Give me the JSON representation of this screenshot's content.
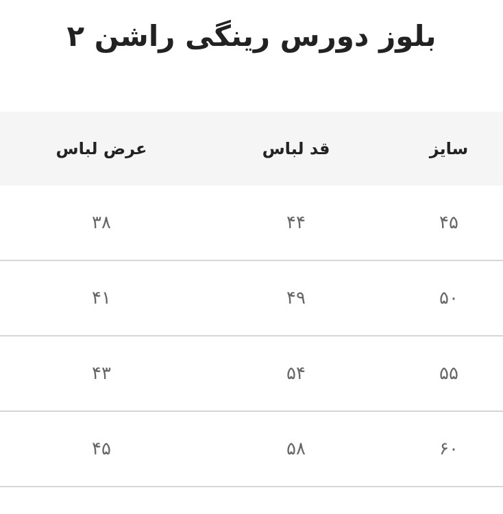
{
  "title": "بلوز دورس رینگی راشن ۲",
  "table": {
    "headers": [
      "سایز",
      "قد لباس",
      "عرض لباس"
    ],
    "rows": [
      [
        "۴۵",
        "۴۴",
        "۳۸"
      ],
      [
        "۵۰",
        "۴۹",
        "۴۱"
      ],
      [
        "۵۵",
        "۵۴",
        "۴۳"
      ],
      [
        "۶۰",
        "۵۸",
        "۴۵"
      ]
    ]
  }
}
